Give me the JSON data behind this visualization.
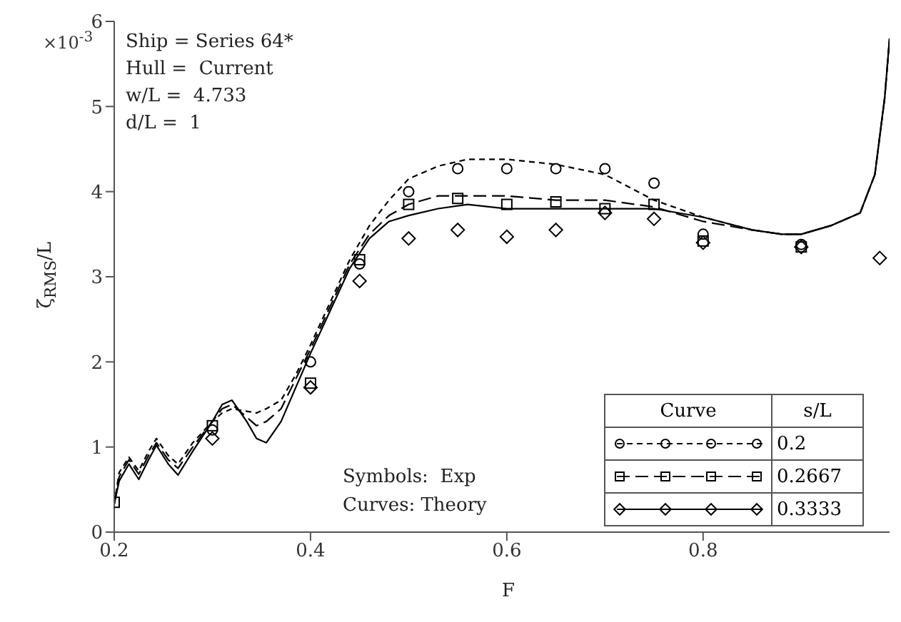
{
  "chart_data": {
    "type": "line",
    "xlabel": "F",
    "ylabel": "ζ$_{RMS}$/L",
    "legend_title": "s/L",
    "legend": "bottom right",
    "xlim": [
      0.2,
      0.99
    ],
    "xticks": [
      0.2,
      0.4,
      0.6,
      0.8
    ],
    "ylim": [
      0,
      6
    ],
    "yticks": [
      0,
      1,
      2,
      3,
      4,
      5,
      6
    ],
    "annotations": [
      "×10$^{-3}$",
      "Ship = Series 64*",
      "Hull =  Current",
      "w/L =  4.733",
      "d/L =  1",
      "Symbols:  Exp",
      "Curves: Theory",
      "Curve"
    ],
    "series": [
      {
        "name": "0.2",
        "line_style": "dotted",
        "color": "#000000",
        "x": [
          0.2,
          0.205,
          0.215,
          0.225,
          0.235,
          0.243,
          0.255,
          0.265,
          0.28,
          0.3,
          0.31,
          0.32,
          0.335,
          0.345,
          0.355,
          0.37,
          0.385,
          0.4,
          0.42,
          0.44,
          0.46,
          0.48,
          0.5,
          0.53,
          0.56,
          0.6,
          0.65,
          0.7,
          0.75,
          0.8,
          0.85,
          0.88,
          0.9,
          0.93,
          0.96,
          0.975,
          0.985,
          0.99
        ],
        "values": [
          0.33,
          0.7,
          0.88,
          0.72,
          0.95,
          1.1,
          0.9,
          0.8,
          1.05,
          1.3,
          1.4,
          1.45,
          1.42,
          1.4,
          1.45,
          1.55,
          1.85,
          2.2,
          2.7,
          3.2,
          3.6,
          3.9,
          4.15,
          4.3,
          4.38,
          4.38,
          4.32,
          4.2,
          3.9,
          3.7,
          3.55,
          3.5,
          3.5,
          3.6,
          3.75,
          4.2,
          5.1,
          5.8
        ]
      },
      {
        "name": "0.2667",
        "line_style": "dashed",
        "color": "#000000",
        "x": [
          0.2,
          0.205,
          0.215,
          0.225,
          0.235,
          0.243,
          0.255,
          0.265,
          0.28,
          0.3,
          0.31,
          0.32,
          0.335,
          0.345,
          0.355,
          0.37,
          0.385,
          0.4,
          0.42,
          0.44,
          0.46,
          0.48,
          0.5,
          0.53,
          0.56,
          0.6,
          0.65,
          0.7,
          0.75,
          0.8,
          0.85,
          0.88,
          0.9,
          0.93,
          0.96,
          0.975,
          0.985,
          0.99
        ],
        "values": [
          0.33,
          0.65,
          0.85,
          0.68,
          0.9,
          1.05,
          0.85,
          0.75,
          1.0,
          1.3,
          1.45,
          1.5,
          1.35,
          1.25,
          1.3,
          1.45,
          1.8,
          2.15,
          2.65,
          3.15,
          3.5,
          3.72,
          3.85,
          3.95,
          3.95,
          3.95,
          3.9,
          3.9,
          3.82,
          3.65,
          3.55,
          3.5,
          3.5,
          3.6,
          3.75,
          4.2,
          5.1,
          5.8
        ]
      },
      {
        "name": "0.3333",
        "line_style": "solid",
        "color": "#000000",
        "x": [
          0.2,
          0.205,
          0.215,
          0.225,
          0.235,
          0.243,
          0.255,
          0.265,
          0.28,
          0.3,
          0.31,
          0.32,
          0.335,
          0.345,
          0.355,
          0.37,
          0.385,
          0.4,
          0.42,
          0.44,
          0.46,
          0.48,
          0.5,
          0.53,
          0.56,
          0.6,
          0.65,
          0.7,
          0.75,
          0.8,
          0.85,
          0.88,
          0.9,
          0.93,
          0.96,
          0.975,
          0.985,
          0.99
        ],
        "values": [
          0.33,
          0.6,
          0.8,
          0.62,
          0.85,
          1.02,
          0.8,
          0.67,
          0.95,
          1.3,
          1.5,
          1.55,
          1.3,
          1.1,
          1.05,
          1.3,
          1.7,
          2.1,
          2.6,
          3.1,
          3.45,
          3.65,
          3.72,
          3.8,
          3.85,
          3.8,
          3.8,
          3.8,
          3.8,
          3.7,
          3.55,
          3.5,
          3.5,
          3.6,
          3.75,
          4.2,
          5.1,
          5.8
        ]
      },
      {
        "type": "scatter",
        "marker": "circle",
        "color": "#000000",
        "x": [
          0.3,
          0.4,
          0.45,
          0.5,
          0.55,
          0.6,
          0.65,
          0.7,
          0.75,
          0.8,
          0.9
        ],
        "values": [
          1.2,
          2.0,
          3.15,
          4.0,
          4.27,
          4.27,
          4.27,
          4.27,
          4.1,
          3.5,
          3.38
        ]
      },
      {
        "type": "scatter",
        "marker": "square",
        "color": "#000000",
        "x": [
          0.2,
          0.3,
          0.4,
          0.45,
          0.5,
          0.55,
          0.6,
          0.65,
          0.7,
          0.75,
          0.8,
          0.9
        ],
        "values": [
          0.35,
          1.25,
          1.75,
          3.2,
          3.85,
          3.92,
          3.85,
          3.88,
          3.8,
          3.85,
          3.42,
          3.35
        ]
      },
      {
        "type": "scatter",
        "marker": "diamond",
        "color": "#000000",
        "x": [
          0.3,
          0.4,
          0.45,
          0.5,
          0.55,
          0.6,
          0.65,
          0.7,
          0.75,
          0.8,
          0.9,
          0.98
        ],
        "values": [
          1.1,
          1.7,
          2.95,
          3.45,
          3.55,
          3.47,
          3.55,
          3.75,
          3.68,
          3.4,
          3.35,
          3.22
        ]
      }
    ]
  }
}
